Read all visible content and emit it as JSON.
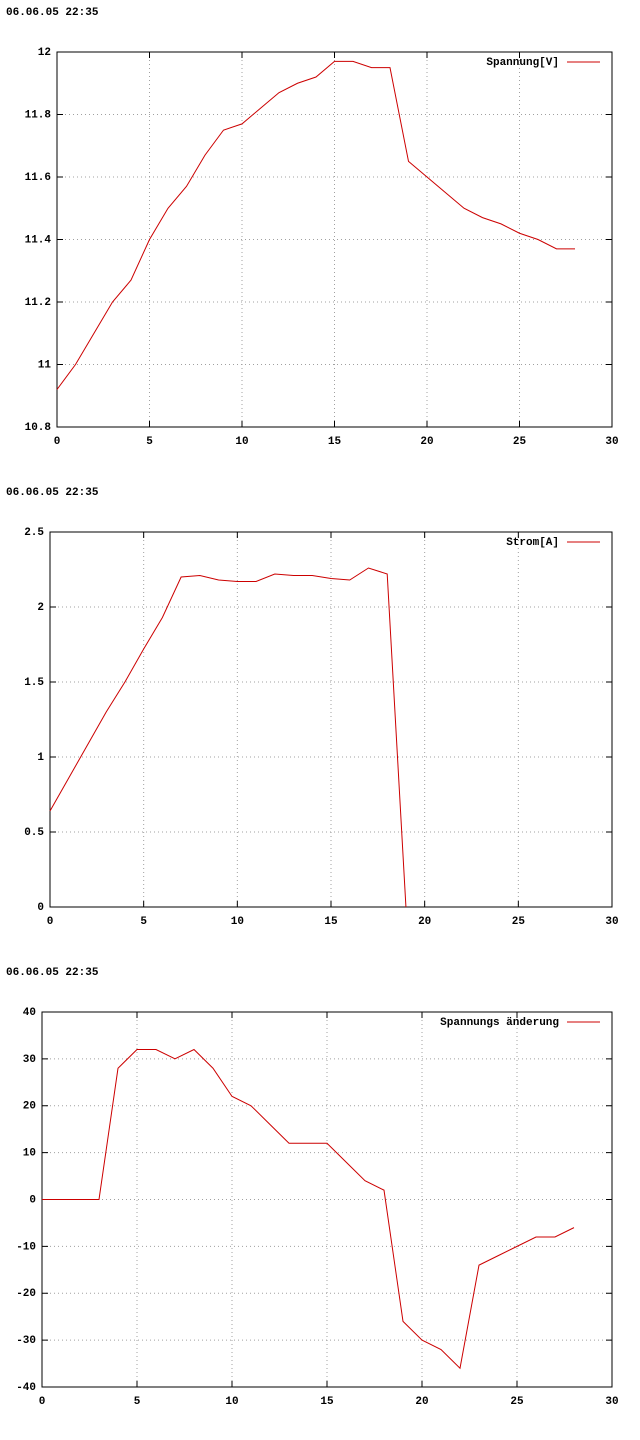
{
  "chart_data": [
    {
      "type": "line",
      "title": "06.06.05 22:35",
      "x": [
        0,
        1,
        2,
        3,
        4,
        5,
        6,
        7,
        8,
        9,
        10,
        11,
        12,
        13,
        14,
        15,
        16,
        17,
        18,
        19,
        20,
        21,
        22,
        23,
        24,
        25,
        26,
        27,
        28
      ],
      "series": [
        {
          "name": "Spannung[V]",
          "color": "#cc0000",
          "values": [
            10.92,
            11.0,
            11.1,
            11.2,
            11.27,
            11.4,
            11.5,
            11.57,
            11.67,
            11.75,
            11.77,
            11.82,
            11.87,
            11.9,
            11.92,
            11.97,
            11.97,
            11.95,
            11.95,
            11.65,
            11.6,
            11.55,
            11.5,
            11.47,
            11.45,
            11.42,
            11.4,
            11.37,
            11.37
          ]
        }
      ],
      "xlim": [
        0,
        30
      ],
      "xticks": [
        0,
        5,
        10,
        15,
        20,
        25,
        30
      ],
      "ylim": [
        10.8,
        12
      ],
      "yticks": [
        10.8,
        11,
        11.2,
        11.4,
        11.6,
        11.8,
        12
      ],
      "grid": true,
      "legend": "top-right"
    },
    {
      "type": "line",
      "title": "06.06.05 22:35",
      "x": [
        0,
        1,
        2,
        3,
        4,
        5,
        6,
        7,
        8,
        9,
        10,
        11,
        12,
        13,
        14,
        15,
        16,
        17,
        18,
        19
      ],
      "series": [
        {
          "name": "Strom[A]",
          "color": "#cc0000",
          "values": [
            0.64,
            0.86,
            1.08,
            1.3,
            1.5,
            1.72,
            1.93,
            2.2,
            2.21,
            2.18,
            2.17,
            2.17,
            2.22,
            2.21,
            2.21,
            2.19,
            2.18,
            2.26,
            2.22,
            0
          ]
        }
      ],
      "xlim": [
        0,
        30
      ],
      "xticks": [
        0,
        5,
        10,
        15,
        20,
        25,
        30
      ],
      "ylim": [
        0,
        2.5
      ],
      "yticks": [
        0,
        0.5,
        1,
        1.5,
        2,
        2.5
      ],
      "grid": true,
      "legend": "top-right"
    },
    {
      "type": "line",
      "title": "06.06.05 22:35",
      "x": [
        0,
        1,
        2,
        3,
        4,
        5,
        6,
        7,
        8,
        9,
        10,
        11,
        12,
        13,
        14,
        15,
        16,
        17,
        18,
        19,
        20,
        21,
        22,
        23,
        24,
        25,
        26,
        27,
        28
      ],
      "series": [
        {
          "name": "Spannungs änderung",
          "color": "#cc0000",
          "values": [
            0,
            0,
            0,
            0,
            28,
            32,
            32,
            30,
            32,
            28,
            22,
            20,
            16,
            12,
            12,
            12,
            8,
            4,
            2,
            -26,
            -30,
            -32,
            -36,
            -14,
            -12,
            -10,
            -8,
            -8,
            -6
          ]
        }
      ],
      "xlim": [
        0,
        30
      ],
      "xticks": [
        0,
        5,
        10,
        15,
        20,
        25,
        30
      ],
      "ylim": [
        -40,
        40
      ],
      "yticks": [
        -40,
        -30,
        -20,
        -10,
        0,
        10,
        20,
        30,
        40
      ],
      "grid": true,
      "legend": "top-right"
    }
  ]
}
